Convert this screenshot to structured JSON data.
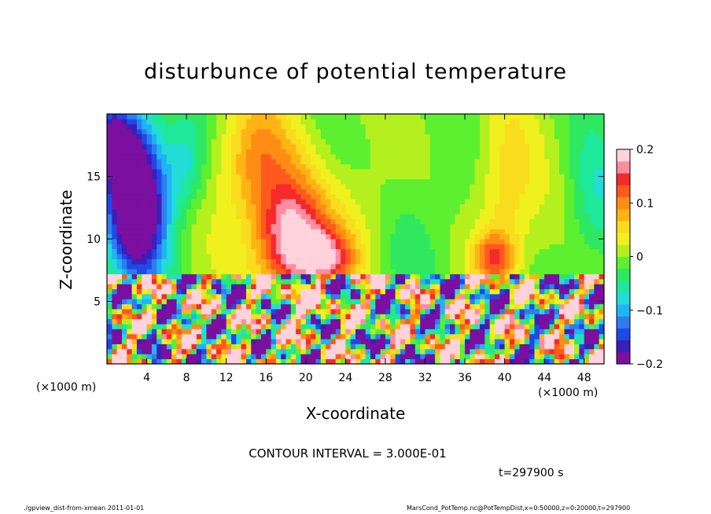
{
  "chart_data": {
    "type": "heatmap",
    "title": "disturbunce of potential temperature",
    "xlabel": "X-coordinate",
    "ylabel": "Z-coordinate",
    "x_unit_label": "(×1000 m)",
    "xlim": [
      0,
      50
    ],
    "ylim": [
      0,
      20
    ],
    "x_ticks": [
      4,
      8,
      12,
      16,
      20,
      24,
      28,
      32,
      36,
      40,
      44,
      48
    ],
    "y_ticks": [
      5,
      10,
      15
    ],
    "colorbar": {
      "range": [
        -0.2,
        0.2
      ],
      "ticks": [
        {
          "value": 0.2,
          "label": "0.2"
        },
        {
          "value": 0.1,
          "label": "0.1"
        },
        {
          "value": 0,
          "label": "0"
        },
        {
          "value": -0.1,
          "label": "−0.1"
        },
        {
          "value": -0.2,
          "label": "−0.2"
        }
      ],
      "colors": [
        "#7b0fa0",
        "#3a1fb8",
        "#1f48e8",
        "#2f7cf0",
        "#1fb4f5",
        "#22dcd8",
        "#1ee89a",
        "#2fe860",
        "#5cf030",
        "#b4f01e",
        "#f0f01e",
        "#fadc1e",
        "#ffb414",
        "#ff8c14",
        "#ff5a1e",
        "#f52a2a",
        "#ff8ca0",
        "#ffd2dc"
      ]
    },
    "contour_interval": "CONTOUR INTERVAL = 3.000E-01",
    "time_label": "t=297900 s"
  },
  "footer": {
    "left": "./gpview_dist-from-xmean  2011-01-01",
    "right": "MarsCond_PotTemp.nc@PotTempDist,x=0:50000,z=0:20000,t=297900"
  }
}
